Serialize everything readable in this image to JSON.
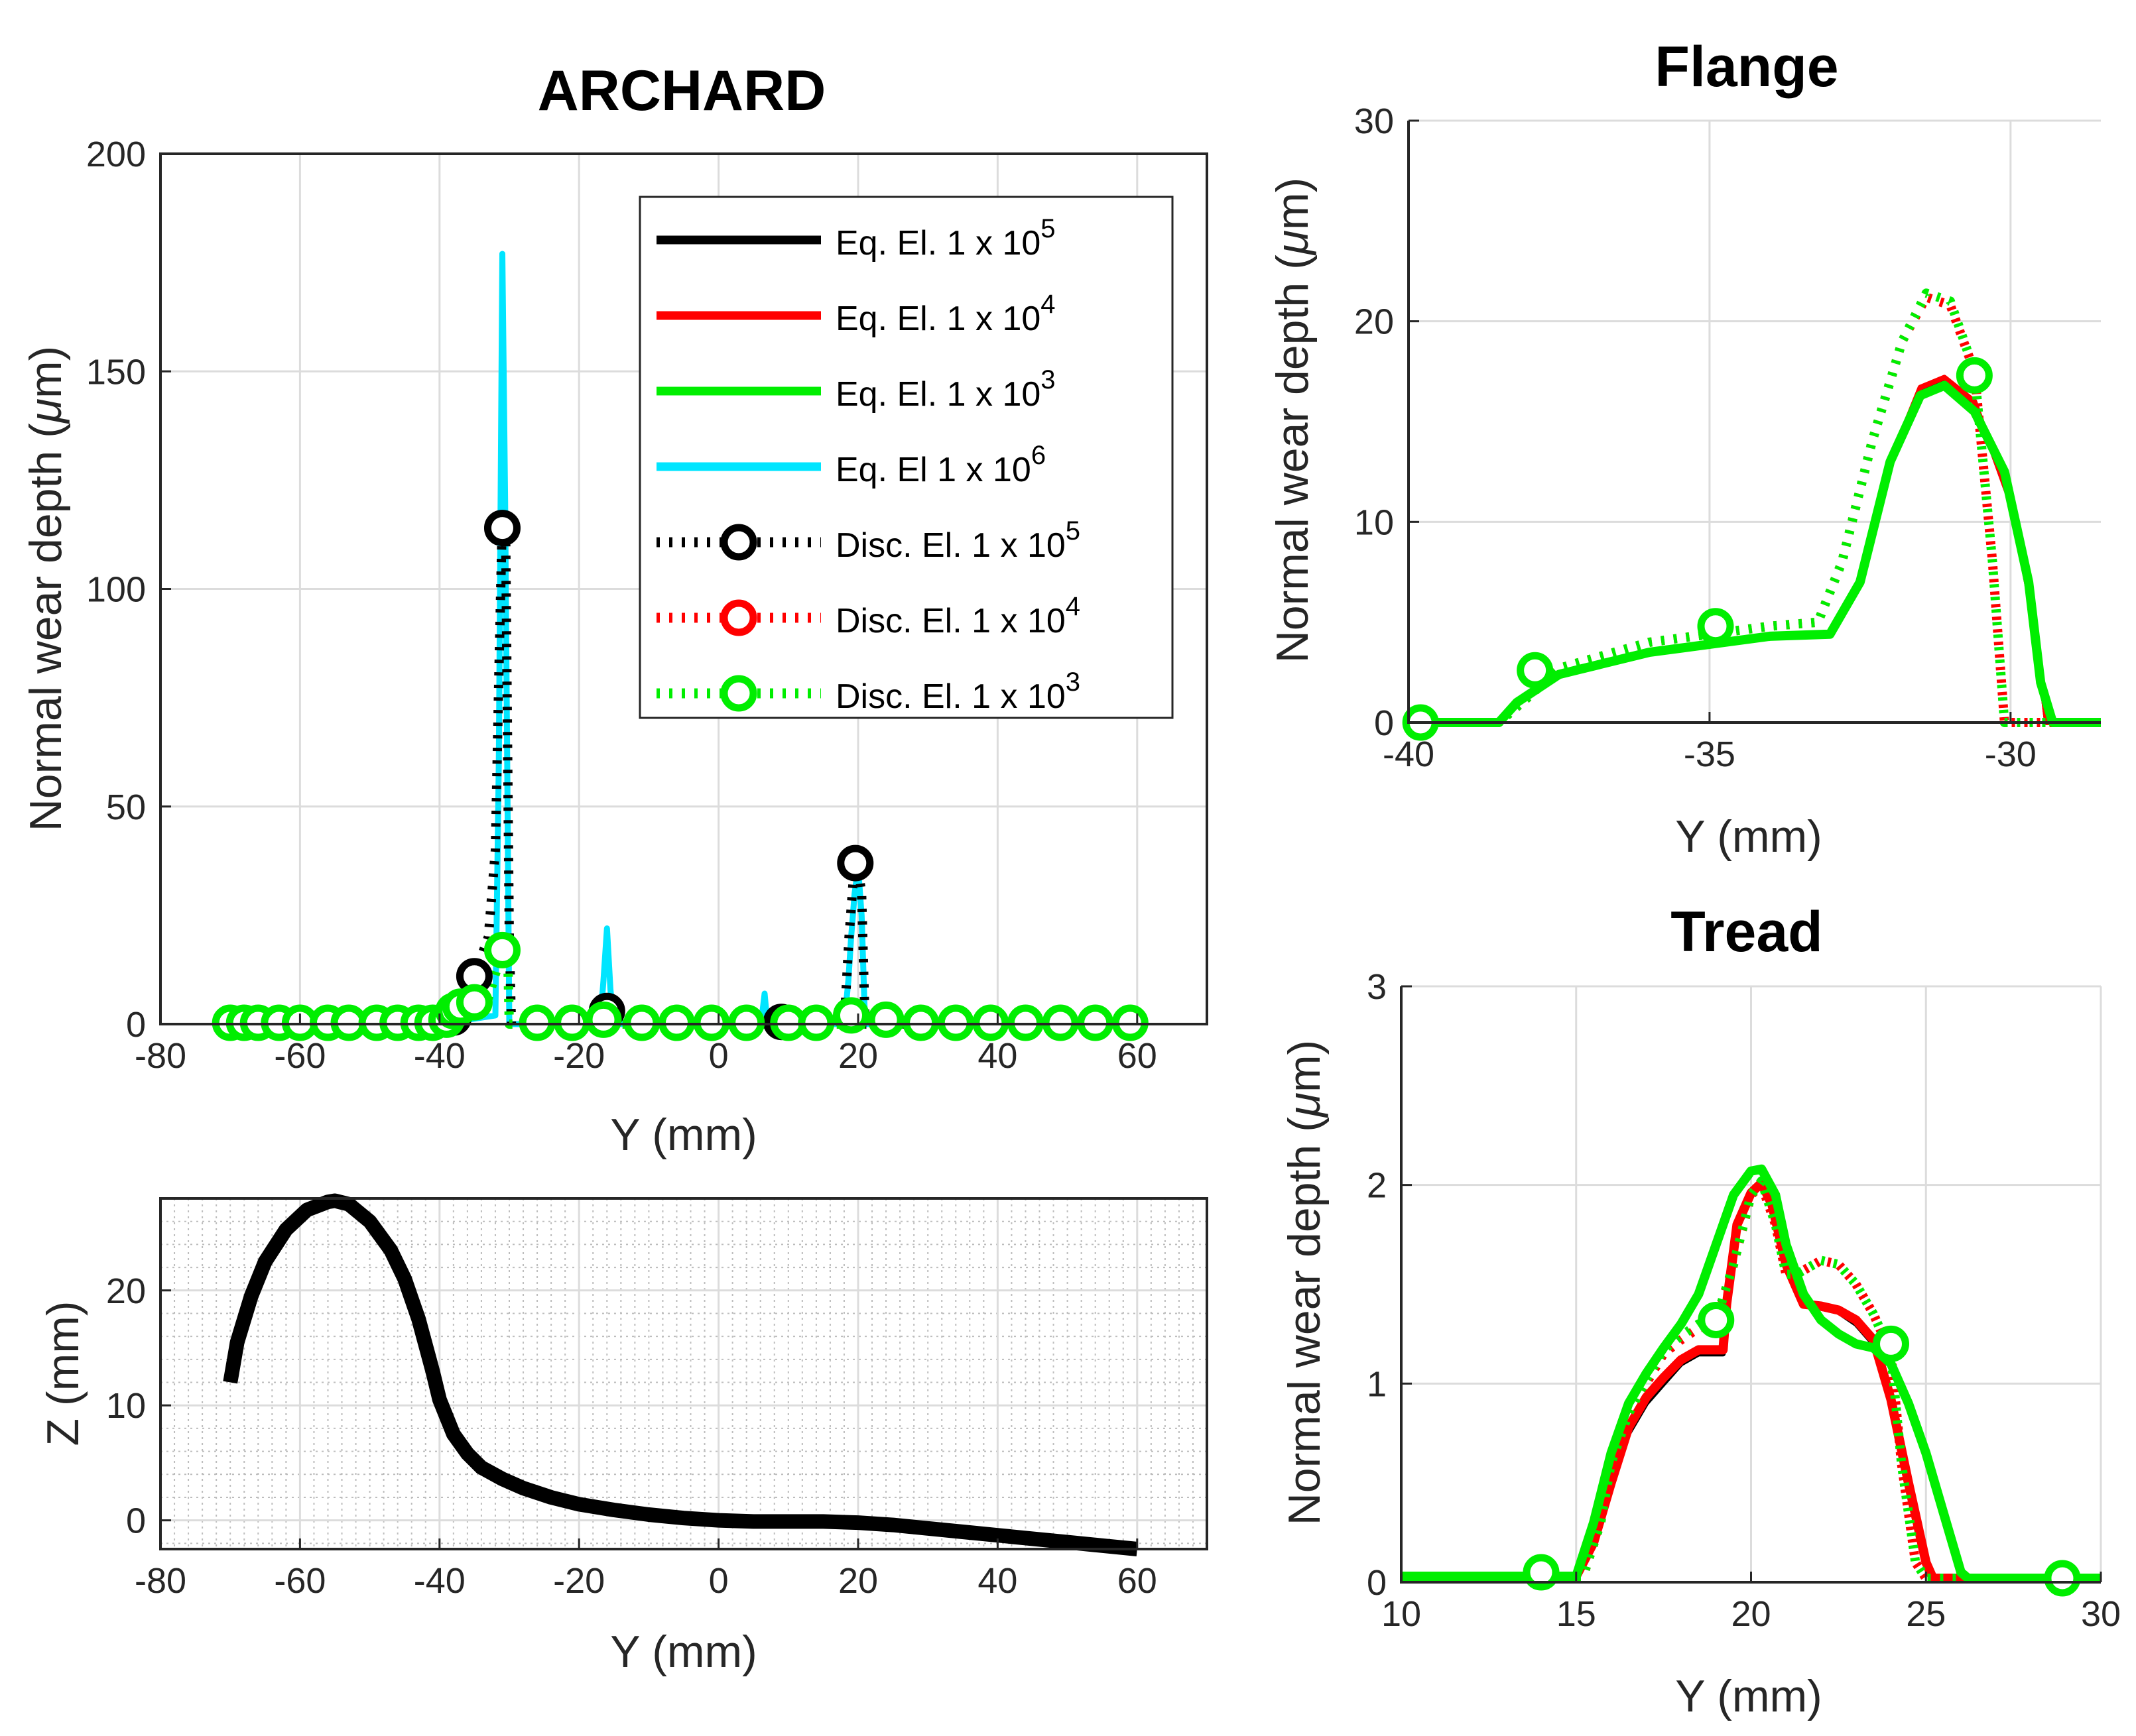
{
  "chart_data": [
    {
      "id": "archard",
      "type": "line",
      "title": "ARCHARD",
      "xlabel": "Y (mm)",
      "ylabel_prefix": "Normal wear depth (",
      "ylabel_mu": "μ",
      "ylabel_suffix": "m)",
      "xlim": [
        -80,
        70
      ],
      "ylim": [
        0,
        200
      ],
      "xticks": [
        -80,
        -60,
        -40,
        -20,
        0,
        20,
        40,
        60
      ],
      "yticks": [
        0,
        50,
        100,
        150,
        200
      ],
      "grid": true,
      "legend_position": "top-right",
      "legend": [
        {
          "base": "Eq. El. 1 x 10",
          "exp": "5",
          "color": "#000000",
          "style": "solid"
        },
        {
          "base": "Eq. El. 1 x 10",
          "exp": "4",
          "color": "#ff0000",
          "style": "solid"
        },
        {
          "base": "Eq. El. 1 x 10",
          "exp": "3",
          "color": "#00ee00",
          "style": "solid"
        },
        {
          "base": "Eq. El 1 x 10",
          "exp": "6",
          "color": "#00e5ff",
          "style": "solid"
        },
        {
          "base": "Disc. El. 1 x 10",
          "exp": "5",
          "color": "#000000",
          "style": "dotted-marker"
        },
        {
          "base": "Disc. El. 1 x 10",
          "exp": "4",
          "color": "#ff0000",
          "style": "dotted-marker"
        },
        {
          "base": "Disc. El. 1 x 10",
          "exp": "3",
          "color": "#00ee00",
          "style": "dotted-marker"
        }
      ],
      "series": [
        {
          "name": "Eq. El 1 x 10^6",
          "color": "#00e5ff",
          "width": 9,
          "dash": "",
          "x": [
            -70,
            -40,
            -32,
            -31.5,
            -31,
            -30.6,
            -30,
            -17,
            -16.5,
            -16,
            -15.5,
            -15,
            6,
            6.3,
            6.6,
            7,
            18,
            18.6,
            19,
            19.5,
            20,
            20.5,
            21,
            60
          ],
          "y": [
            0,
            0,
            2,
            60,
            177,
            120,
            0,
            0,
            10,
            22,
            8,
            0,
            0,
            3,
            7,
            0,
            0,
            10,
            20,
            30,
            36,
            25,
            0,
            0
          ]
        },
        {
          "name": "Disc. El. 1 x 10^5",
          "color": "#000000",
          "width": 14,
          "dash": "5 14",
          "x": [
            -70,
            -45,
            -40,
            -37,
            -35,
            -33,
            -32,
            -31.5,
            -31,
            -30.5,
            -30,
            -29.7,
            -17,
            -16.5,
            -16,
            -15.5,
            -15,
            18,
            18.7,
            19.3,
            20,
            20.5,
            21,
            60
          ],
          "y": [
            0,
            0,
            2,
            6,
            11,
            20,
            40,
            80,
            117,
            110,
            20,
            0,
            0,
            4,
            5,
            3,
            0,
            0,
            20,
            33,
            36,
            30,
            0,
            0
          ]
        },
        {
          "name": "Disc. El. 1 x 10^3",
          "color": "#00ee00",
          "width": 14,
          "dash": "5 14",
          "x": [
            -70,
            -40,
            -36,
            -33,
            -31,
            -30.2,
            -30,
            60
          ],
          "y": [
            0,
            0,
            2,
            6,
            17,
            14,
            0,
            0
          ]
        }
      ],
      "markers": [
        {
          "color": "#000000",
          "points": [
            [
              -31,
              114
            ],
            [
              -35,
              11
            ],
            [
              -16,
              3
            ],
            [
              9,
              0.5
            ],
            [
              19.6,
              37
            ],
            [
              -38,
              1.5
            ]
          ]
        },
        {
          "color": "#00ee00",
          "points": [
            [
              -70,
              0.3
            ],
            [
              -68,
              0.3
            ],
            [
              -66,
              0.3
            ],
            [
              -63,
              0.3
            ],
            [
              -60,
              0.3
            ],
            [
              -56,
              0.3
            ],
            [
              -53,
              0.3
            ],
            [
              -49,
              0.3
            ],
            [
              -46,
              0.3
            ],
            [
              -43,
              0.3
            ],
            [
              -41,
              0.3
            ],
            [
              -39,
              1
            ],
            [
              -38,
              3
            ],
            [
              -37,
              4
            ],
            [
              -35,
              5
            ],
            [
              -31,
              17
            ],
            [
              -26,
              0.3
            ],
            [
              -21,
              0.3
            ],
            [
              -16.5,
              1
            ],
            [
              -11,
              0.3
            ],
            [
              -6,
              0.3
            ],
            [
              -1,
              0.3
            ],
            [
              4,
              0.3
            ],
            [
              10,
              0.3
            ],
            [
              14,
              0.3
            ],
            [
              19,
              2
            ],
            [
              24,
              1
            ],
            [
              29,
              0.3
            ],
            [
              34,
              0.3
            ],
            [
              39,
              0.3
            ],
            [
              44,
              0.3
            ],
            [
              49,
              0.3
            ],
            [
              54,
              0.3
            ],
            [
              59,
              0.3
            ]
          ]
        }
      ]
    },
    {
      "id": "profile",
      "type": "line",
      "title": "",
      "xlabel": "Y (mm)",
      "ylabel": "Z (mm)",
      "xlim": [
        -80,
        70
      ],
      "ylim": [
        -2.5,
        28
      ],
      "xticks": [
        -80,
        -60,
        -40,
        -20,
        0,
        20,
        40,
        60
      ],
      "yticks": [
        0,
        10,
        20
      ],
      "grid": true,
      "minor_grid": true,
      "series": [
        {
          "name": "Profile",
          "color": "#000000",
          "width": 22,
          "dash": "",
          "x": [
            -70,
            -69,
            -67,
            -65,
            -62,
            -59,
            -56,
            -55,
            -53,
            -50,
            -47,
            -45,
            -43,
            -41,
            -40,
            -38,
            -36,
            -34,
            -31,
            -28,
            -24,
            -20,
            -15,
            -10,
            -5,
            0,
            5,
            10,
            15,
            20,
            25,
            30,
            35,
            40,
            45,
            50,
            55,
            60
          ],
          "y": [
            12,
            15.5,
            19.5,
            22.5,
            25.3,
            27,
            27.7,
            27.8,
            27.5,
            26,
            23.5,
            21,
            17.5,
            13,
            10.5,
            7.5,
            5.8,
            4.6,
            3.6,
            2.8,
            2.0,
            1.4,
            0.9,
            0.5,
            0.2,
            0,
            -0.1,
            -0.1,
            -0.1,
            -0.2,
            -0.4,
            -0.7,
            -1.0,
            -1.3,
            -1.6,
            -1.9,
            -2.2,
            -2.5
          ]
        }
      ]
    },
    {
      "id": "flange",
      "type": "line",
      "title": "Flange",
      "xlabel": "Y (mm)",
      "ylabel_prefix": "Normal wear depth (",
      "ylabel_mu": "μ",
      "ylabel_suffix": "m)",
      "xlim": [
        -40,
        -28.5
      ],
      "ylim": [
        0,
        30
      ],
      "xticks": [
        -40,
        -35,
        -30
      ],
      "yticks": [
        0,
        10,
        20,
        30
      ],
      "grid": true,
      "series": [
        {
          "name": "Eq. El. 1 x 10^5",
          "color": "#000000",
          "width": 8,
          "dash": "",
          "x": [
            -40,
            -38.5,
            -38.2,
            -37.5,
            -36,
            -34,
            -33,
            -32.5,
            -32,
            -31.5,
            -31.1,
            -30.6,
            -30,
            -29.6,
            -29.4,
            -28.5
          ],
          "y": [
            0,
            0,
            1,
            2.4,
            3.5,
            4.3,
            4.5,
            7,
            13,
            16.5,
            17,
            16,
            11,
            5,
            0,
            0
          ]
        },
        {
          "name": "Eq. El. 1 x 10^4",
          "color": "#ff0000",
          "width": 8,
          "dash": "",
          "x": [
            -40,
            -38.5,
            -38.2,
            -37.5,
            -36,
            -34,
            -33,
            -32.5,
            -32,
            -31.5,
            -31.1,
            -30.6,
            -30,
            -29.6,
            -29.4,
            -28.5
          ],
          "y": [
            0,
            0,
            1,
            2.4,
            3.5,
            4.3,
            4.5,
            7,
            13,
            16.7,
            17.2,
            16,
            11,
            5,
            0,
            0
          ]
        },
        {
          "name": "Disc. El. 1 x 10^4",
          "color": "#ff0000",
          "width": 14,
          "dash": "5 14",
          "x": [
            -40,
            -38.5,
            -38,
            -37.5,
            -36,
            -34,
            -33.2,
            -32.8,
            -32.3,
            -31.8,
            -31.4,
            -31,
            -30.6,
            -30.3,
            -30.1,
            -28.5
          ],
          "y": [
            0,
            0,
            1.3,
            2.7,
            4,
            4.8,
            5,
            8,
            14,
            19,
            21.2,
            20.8,
            17.5,
            8,
            0,
            0
          ]
        },
        {
          "name": "Disc. El. 1 x 10^3",
          "color": "#00ee00",
          "width": 14,
          "dash": "5 14",
          "x": [
            -40,
            -38.5,
            -38,
            -37.5,
            -36,
            -34,
            -33.2,
            -32.8,
            -32.3,
            -31.8,
            -31.4,
            -31,
            -30.6,
            -30.3,
            -30.1,
            -28.5
          ],
          "y": [
            0,
            0,
            1.3,
            2.7,
            4,
            4.8,
            5,
            8,
            14,
            19,
            21.4,
            21,
            17.5,
            8,
            0,
            0
          ]
        },
        {
          "name": "Eq. El. 1 x 10^3",
          "color": "#00ee00",
          "width": 14,
          "dash": "",
          "x": [
            -40,
            -38.5,
            -38.2,
            -37.5,
            -36,
            -34,
            -33,
            -32.5,
            -32,
            -31.5,
            -31.1,
            -30.6,
            -30.1,
            -29.7,
            -29.5,
            -29.3,
            -28.5
          ],
          "y": [
            0,
            0,
            1,
            2.4,
            3.5,
            4.3,
            4.4,
            7,
            13,
            16.3,
            16.8,
            15.5,
            12.5,
            7,
            2,
            0,
            0
          ]
        }
      ],
      "markers": [
        {
          "color": "#00ee00",
          "points": [
            [
              -39.8,
              0
            ],
            [
              -37.9,
              2.6
            ],
            [
              -34.9,
              4.8
            ],
            [
              -30.6,
              17.3
            ]
          ]
        }
      ]
    },
    {
      "id": "tread",
      "type": "line",
      "title": "Tread",
      "xlabel": "Y (mm)",
      "ylabel_prefix": "Normal wear depth (",
      "ylabel_mu": "μ",
      "ylabel_suffix": "m)",
      "xlim": [
        10,
        30
      ],
      "ylim": [
        0,
        3
      ],
      "xticks": [
        10,
        15,
        20,
        25,
        30
      ],
      "yticks": [
        0,
        1,
        2,
        3
      ],
      "grid": true,
      "series": [
        {
          "name": "Eq. El. 1 x 10^5",
          "color": "#000000",
          "width": 8,
          "dash": "",
          "x": [
            10,
            15,
            15.5,
            16,
            16.5,
            17,
            17.5,
            18,
            18.5,
            19.2,
            19.3,
            19.6,
            20,
            20.3,
            20.6,
            21,
            21.5,
            22,
            22.5,
            23,
            23.5,
            24,
            24.5,
            25,
            25.2,
            25.4,
            30
          ],
          "y": [
            0.03,
            0.03,
            0.2,
            0.5,
            0.75,
            0.9,
            1.0,
            1.1,
            1.15,
            1.15,
            1.4,
            1.8,
            1.95,
            2.0,
            1.9,
            1.6,
            1.4,
            1.38,
            1.36,
            1.3,
            1.2,
            0.9,
            0.5,
            0.1,
            0.02,
            0.02,
            0.02
          ]
        },
        {
          "name": "Eq. El. 1 x 10^4",
          "color": "#ff0000",
          "width": 14,
          "dash": "",
          "x": [
            10,
            15,
            15.5,
            16,
            16.5,
            17,
            17.5,
            18,
            18.5,
            19.2,
            19.3,
            19.6,
            20,
            20.3,
            20.6,
            21,
            21.5,
            22,
            22.5,
            23,
            23.5,
            24,
            24.5,
            25,
            25.2,
            25.4,
            30
          ],
          "y": [
            0.03,
            0.03,
            0.2,
            0.5,
            0.78,
            0.93,
            1.03,
            1.12,
            1.17,
            1.17,
            1.4,
            1.8,
            1.96,
            2.01,
            1.9,
            1.6,
            1.4,
            1.39,
            1.37,
            1.32,
            1.22,
            0.92,
            0.5,
            0.1,
            0.02,
            0.02,
            0.02
          ]
        },
        {
          "name": "Disc. El. 1 x 10^4",
          "color": "#ff0000",
          "width": 14,
          "dash": "5 14",
          "x": [
            10,
            15.2,
            15.7,
            16,
            16.5,
            17,
            17.5,
            18,
            18.5,
            19,
            19.5,
            20,
            20.3,
            20.7,
            21,
            21.3,
            21.6,
            22,
            22.5,
            23,
            23.5,
            24,
            24.3,
            24.7,
            25,
            30
          ],
          "y": [
            0.03,
            0.03,
            0.3,
            0.6,
            0.85,
            1.0,
            1.15,
            1.22,
            1.28,
            1.3,
            1.6,
            1.95,
            2.0,
            1.8,
            1.55,
            1.55,
            1.58,
            1.62,
            1.6,
            1.5,
            1.35,
            1.15,
            0.6,
            0.1,
            0.02,
            0.02
          ]
        },
        {
          "name": "Disc. El. 1 x 10^3",
          "color": "#00ee00",
          "width": 14,
          "dash": "5 14",
          "x": [
            10,
            15.2,
            15.7,
            16,
            16.5,
            17,
            17.5,
            18,
            18.5,
            19,
            19.5,
            20,
            20.3,
            20.7,
            21,
            21.3,
            21.6,
            22,
            22.5,
            23,
            23.5,
            24,
            24.3,
            24.7,
            25,
            30
          ],
          "y": [
            0.03,
            0.03,
            0.3,
            0.6,
            0.85,
            1.02,
            1.17,
            1.24,
            1.3,
            1.32,
            1.6,
            1.95,
            2.02,
            1.8,
            1.55,
            1.55,
            1.58,
            1.62,
            1.6,
            1.5,
            1.35,
            1.15,
            0.6,
            0.1,
            0.02,
            0.02
          ]
        },
        {
          "name": "Eq. El. 1 x 10^3",
          "color": "#00ee00",
          "width": 14,
          "dash": "",
          "x": [
            10,
            15,
            15.5,
            16,
            16.5,
            17,
            17.5,
            18,
            18.5,
            19,
            19.5,
            20,
            20.3,
            20.7,
            21,
            21.5,
            22,
            22.5,
            23,
            23.5,
            24,
            24.5,
            25,
            25.5,
            26,
            26.2,
            30
          ],
          "y": [
            0.03,
            0.03,
            0.3,
            0.65,
            0.9,
            1.05,
            1.18,
            1.3,
            1.45,
            1.7,
            1.95,
            2.07,
            2.08,
            1.95,
            1.7,
            1.45,
            1.32,
            1.25,
            1.2,
            1.18,
            1.1,
            0.9,
            0.65,
            0.35,
            0.05,
            0.02,
            0.02
          ]
        }
      ],
      "markers": [
        {
          "color": "#00ee00",
          "points": [
            [
              14,
              0.05
            ],
            [
              19,
              1.32
            ],
            [
              24,
              1.2
            ],
            [
              28.9,
              0.02
            ]
          ]
        }
      ]
    }
  ]
}
